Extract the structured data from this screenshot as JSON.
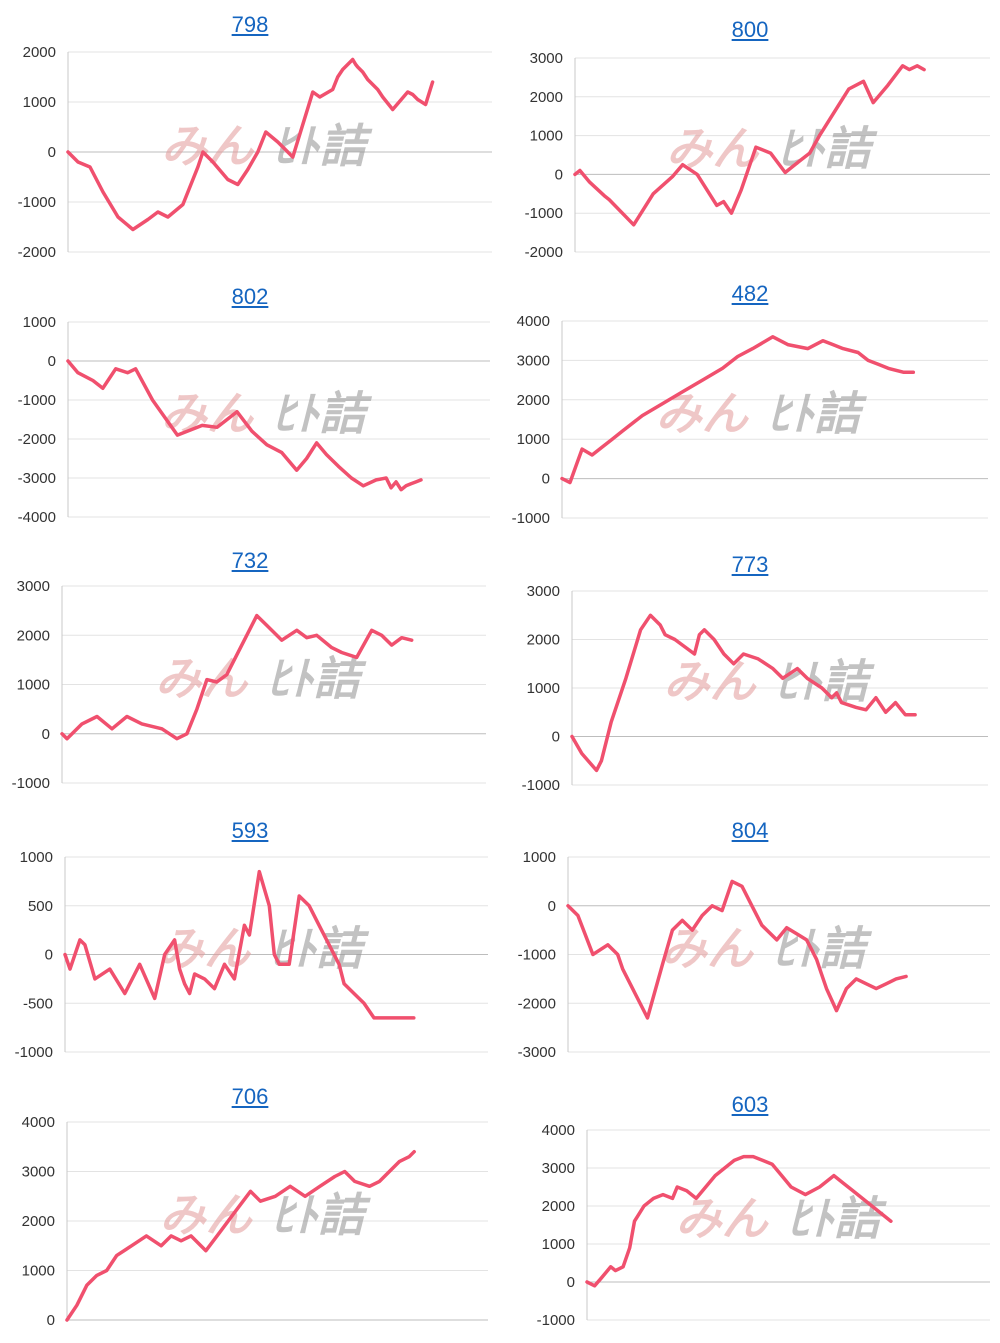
{
  "line_color": "#f0506e",
  "grid_color": "#e3e3e3",
  "axis_color": "#c8c8c8",
  "title_color": "#1565c0",
  "watermark": {
    "text_main": "みん",
    "text_sub": "ﾋﾄ詰"
  },
  "chart_data": [
    {
      "type": "line",
      "title": "798",
      "yticks": [
        "2000",
        "1000",
        "0",
        "-1000",
        "-2000"
      ],
      "ylim": [
        -2000,
        2000
      ],
      "x": [
        0,
        10,
        22,
        35,
        50,
        65,
        80,
        90,
        100,
        115,
        130,
        135,
        145,
        160,
        170,
        180,
        190,
        198,
        210,
        225,
        245,
        252,
        265,
        270,
        275,
        285,
        288,
        290,
        295,
        300,
        305,
        310,
        315,
        325,
        340,
        345,
        350,
        358,
        365
      ],
      "values": [
        0,
        -200,
        -300,
        -800,
        -1300,
        -1550,
        -1350,
        -1200,
        -1300,
        -1050,
        -300,
        0,
        -200,
        -550,
        -650,
        -350,
        0,
        400,
        200,
        -100,
        1200,
        1100,
        1250,
        1500,
        1650,
        1850,
        1750,
        1700,
        1600,
        1450,
        1350,
        1250,
        1100,
        850,
        1200,
        1150,
        1050,
        950,
        1400
      ]
    },
    {
      "type": "line",
      "title": "800",
      "yticks": [
        "3000",
        "2000",
        "1000",
        "0",
        "-1000",
        "-2000"
      ],
      "ylim": [
        -2000,
        3000
      ],
      "x": [
        0,
        5,
        15,
        30,
        35,
        60,
        80,
        100,
        110,
        125,
        145,
        152,
        160,
        170,
        185,
        200,
        215,
        230,
        240,
        250,
        270,
        280,
        295,
        305,
        320,
        335,
        342,
        350,
        357
      ],
      "values": [
        0,
        100,
        -200,
        -550,
        -650,
        -1300,
        -500,
        -50,
        250,
        0,
        -800,
        -700,
        -1000,
        -400,
        700,
        550,
        50,
        350,
        550,
        1000,
        1800,
        2200,
        2400,
        1850,
        2300,
        2800,
        2700,
        2800,
        2700
      ]
    },
    {
      "type": "line",
      "title": "802",
      "yticks": [
        "1000",
        "0",
        "-1000",
        "-2000",
        "-3000",
        "-4000"
      ],
      "ylim": [
        -4000,
        1000
      ],
      "x": [
        0,
        10,
        25,
        35,
        48,
        60,
        68,
        85,
        110,
        135,
        150,
        160,
        170,
        185,
        200,
        215,
        230,
        240,
        250,
        260,
        272,
        285,
        297,
        310,
        320,
        325,
        330,
        335,
        340,
        345,
        350,
        355
      ],
      "values": [
        0,
        -300,
        -500,
        -700,
        -200,
        -300,
        -200,
        -1000,
        -1900,
        -1650,
        -1700,
        -1500,
        -1300,
        -1800,
        -2150,
        -2350,
        -2800,
        -2500,
        -2100,
        -2400,
        -2700,
        -3000,
        -3200,
        -3050,
        -3000,
        -3250,
        -3100,
        -3300,
        -3200,
        -3150,
        -3100,
        -3050
      ]
    },
    {
      "type": "line",
      "title": "482",
      "yticks": [
        "4000",
        "3000",
        "2000",
        "1000",
        "0",
        "-1000"
      ],
      "ylim": [
        -1000,
        4000
      ],
      "x": [
        0,
        8,
        15,
        20,
        30,
        40,
        50,
        60,
        80,
        100,
        120,
        140,
        160,
        175,
        190,
        210,
        225,
        245,
        260,
        270,
        280,
        295,
        305,
        315,
        325,
        340,
        350
      ],
      "values": [
        0,
        -100,
        400,
        750,
        600,
        800,
        1000,
        1200,
        1600,
        1900,
        2200,
        2500,
        2800,
        3100,
        3300,
        3600,
        3400,
        3300,
        3500,
        3400,
        3300,
        3200,
        3000,
        2900,
        2800,
        2700,
        2700
      ]
    },
    {
      "type": "line",
      "title": "732",
      "yticks": [
        "3000",
        "2000",
        "1000",
        "0",
        "-1000"
      ],
      "ylim": [
        -1000,
        3000
      ],
      "x": [
        0,
        5,
        20,
        35,
        50,
        65,
        80,
        100,
        115,
        125,
        135,
        145,
        155,
        165,
        180,
        195,
        205,
        220,
        235,
        245,
        255,
        270,
        280,
        295,
        310,
        320,
        330,
        340,
        350
      ],
      "values": [
        0,
        -100,
        200,
        350,
        100,
        350,
        200,
        100,
        -100,
        0,
        500,
        1100,
        1050,
        1200,
        1800,
        2400,
        2200,
        1900,
        2100,
        1950,
        2000,
        1750,
        1650,
        1550,
        2100,
        2000,
        1800,
        1950,
        1900
      ]
    },
    {
      "type": "line",
      "title": "773",
      "yticks": [
        "3000",
        "2000",
        "1000",
        "0",
        "-1000"
      ],
      "ylim": [
        -1000,
        3000
      ],
      "x": [
        0,
        10,
        25,
        30,
        40,
        55,
        70,
        80,
        90,
        95,
        105,
        125,
        130,
        135,
        145,
        155,
        165,
        175,
        190,
        205,
        215,
        230,
        240,
        255,
        265,
        270,
        275,
        290,
        300,
        310,
        320,
        330,
        340,
        350
      ],
      "values": [
        0,
        -350,
        -700,
        -500,
        300,
        1200,
        2200,
        2500,
        2300,
        2100,
        2000,
        1700,
        2100,
        2200,
        2000,
        1700,
        1500,
        1700,
        1600,
        1400,
        1200,
        1400,
        1200,
        1000,
        800,
        900,
        700,
        600,
        550,
        800,
        500,
        700,
        450,
        450
      ]
    },
    {
      "type": "line",
      "title": "593",
      "yticks": [
        "1000",
        "500",
        "0",
        "-500",
        "-1000"
      ],
      "ylim": [
        -1000,
        1000
      ],
      "x": [
        0,
        5,
        15,
        20,
        30,
        45,
        60,
        75,
        90,
        100,
        110,
        115,
        120,
        125,
        130,
        140,
        150,
        160,
        170,
        180,
        185,
        195,
        205,
        210,
        215,
        225,
        235,
        245,
        255,
        265,
        275,
        280,
        290,
        300,
        310,
        320,
        330,
        340,
        345,
        350
      ],
      "values": [
        0,
        -150,
        150,
        100,
        -250,
        -150,
        -400,
        -100,
        -450,
        0,
        150,
        -150,
        -300,
        -400,
        -200,
        -250,
        -350,
        -100,
        -250,
        300,
        200,
        850,
        500,
        0,
        -100,
        -100,
        600,
        500,
        300,
        100,
        -100,
        -300,
        -400,
        -500,
        -650,
        -650,
        -650,
        -650,
        -650,
        -650
      ]
    },
    {
      "type": "line",
      "title": "804",
      "yticks": [
        "1000",
        "0",
        "-1000",
        "-2000",
        "-3000"
      ],
      "ylim": [
        -3000,
        1000
      ],
      "x": [
        0,
        10,
        25,
        40,
        50,
        55,
        65,
        80,
        95,
        105,
        115,
        125,
        135,
        145,
        155,
        165,
        175,
        185,
        195,
        210,
        220,
        232,
        240,
        245,
        250,
        255,
        260,
        270,
        280,
        290,
        300,
        310,
        320,
        330,
        340
      ],
      "values": [
        0,
        -200,
        -1000,
        -800,
        -1000,
        -1300,
        -1700,
        -2300,
        -1200,
        -500,
        -300,
        -500,
        -200,
        0,
        -100,
        500,
        400,
        0,
        -400,
        -700,
        -450,
        -600,
        -700,
        -900,
        -1100,
        -1400,
        -1700,
        -2150,
        -1700,
        -1500,
        -1600,
        -1700,
        -1600,
        -1500,
        -1450
      ]
    },
    {
      "type": "line",
      "title": "706",
      "yticks": [
        "4000",
        "3000",
        "2000",
        "1000",
        "0"
      ],
      "ylim": [
        0,
        4000
      ],
      "x": [
        0,
        10,
        20,
        30,
        40,
        50,
        65,
        80,
        95,
        105,
        115,
        125,
        140,
        155,
        170,
        185,
        195,
        210,
        225,
        240,
        255,
        270,
        280,
        290,
        305,
        315,
        325,
        335,
        345,
        350
      ],
      "values": [
        0,
        300,
        700,
        900,
        1000,
        1300,
        1500,
        1700,
        1500,
        1700,
        1600,
        1700,
        1400,
        1800,
        2200,
        2600,
        2400,
        2500,
        2700,
        2500,
        2700,
        2900,
        3000,
        2800,
        2700,
        2800,
        3000,
        3200,
        3300,
        3400
      ]
    },
    {
      "type": "line",
      "title": "603",
      "yticks": [
        "4000",
        "3000",
        "2000",
        "1000",
        "0",
        "-1000"
      ],
      "ylim": [
        -1000,
        4000
      ],
      "x": [
        0,
        8,
        15,
        25,
        30,
        38,
        45,
        50,
        60,
        70,
        80,
        90,
        95,
        105,
        115,
        125,
        135,
        145,
        155,
        165,
        175,
        185,
        195,
        205,
        215,
        230,
        245,
        260,
        270,
        280,
        290,
        300,
        310,
        320
      ],
      "values": [
        0,
        -100,
        100,
        400,
        300,
        400,
        900,
        1600,
        2000,
        2200,
        2300,
        2200,
        2500,
        2400,
        2200,
        2500,
        2800,
        3000,
        3200,
        3300,
        3300,
        3200,
        3100,
        2800,
        2500,
        2300,
        2500,
        2800,
        2600,
        2400,
        2200,
        2000,
        1800,
        1600
      ]
    }
  ]
}
